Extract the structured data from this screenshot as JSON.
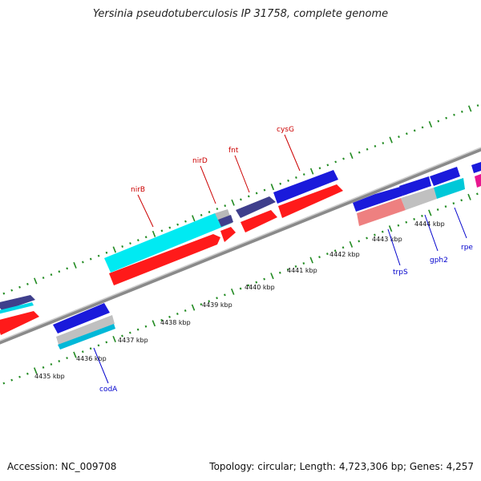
{
  "title": "Yersinia pseudotuberculosis IP 31758, complete genome",
  "footer": {
    "accession_label": "Accession:",
    "accession": "NC_009708",
    "topology_label": "Topology:",
    "topology": "circular",
    "length_label": "Length:",
    "length": "4,723,306 bp",
    "genes_label": "Genes:",
    "genes": "4,257"
  },
  "colors": {
    "background": "#ffffff",
    "backbone": "#8a8a8a",
    "tick_dots": "#228b22",
    "forward_label": "#cc0000",
    "reverse_label": "#0000cc",
    "blue_gene": "#1a1adb",
    "red_gene": "#ff1a1a",
    "cyan_gene": "#00f0f0",
    "navy_gene": "#3f3f8c",
    "gray_gene": "#b8b8b8",
    "pink_gene": "#ee8080",
    "magenta_gene": "#e8178f"
  },
  "axis": {
    "unit": "kbp",
    "ticks": [
      {
        "kbp": 4435,
        "label": "4435 kbp"
      },
      {
        "kbp": 4436,
        "label": "4436 kbp"
      },
      {
        "kbp": 4437,
        "label": "4437 kbp"
      },
      {
        "kbp": 4438,
        "label": "4438 kbp"
      },
      {
        "kbp": 4439,
        "label": "4439 kbp"
      },
      {
        "kbp": 4440,
        "label": "4440 kbp"
      },
      {
        "kbp": 4441,
        "label": "4441 kbp"
      },
      {
        "kbp": 4442,
        "label": "4442 kbp"
      },
      {
        "kbp": 4443,
        "label": "4443 kbp"
      },
      {
        "kbp": 4444,
        "label": "4444 kbp"
      }
    ]
  },
  "gene_labels": {
    "forward": [
      "nirB",
      "nirD",
      "fnt",
      "cysG"
    ],
    "reverse": [
      "codA",
      "trpS",
      "gph2",
      "rpe"
    ]
  }
}
